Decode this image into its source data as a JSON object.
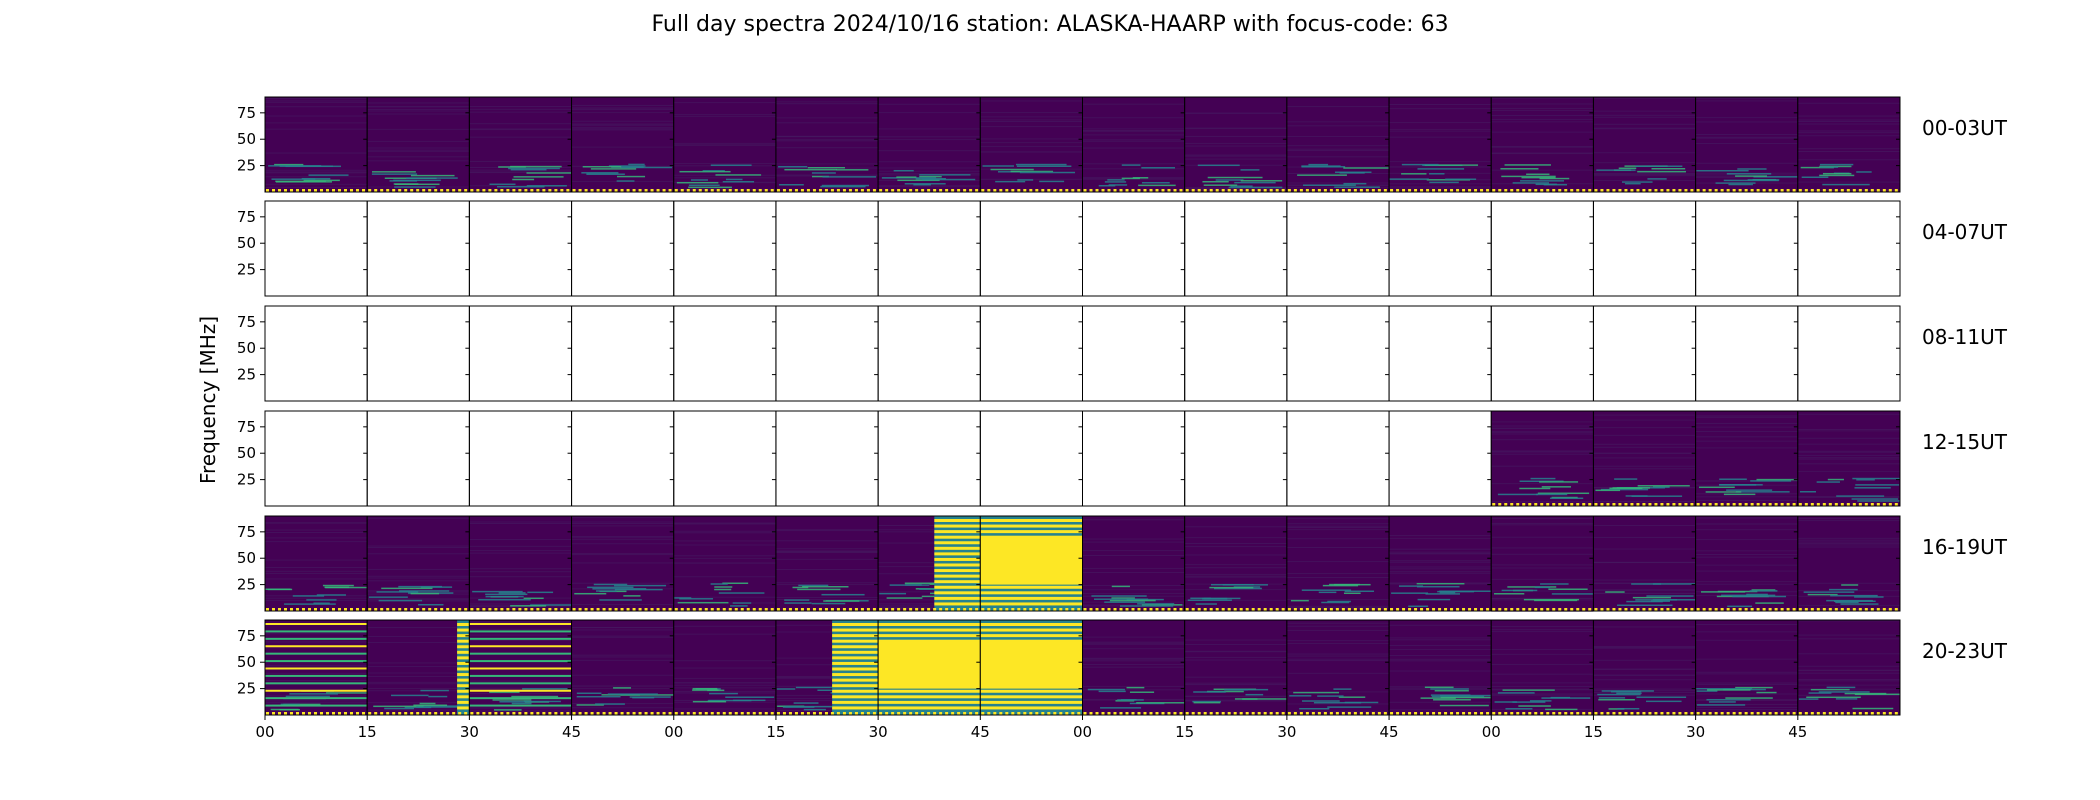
{
  "title": "Full day spectra 2024/10/16 station: ALASKA-HAARP with focus-code: 63",
  "chart_data": {
    "type": "heatmap",
    "title": "Full day spectra 2024/10/16 station: ALASKA-HAARP with focus-code: 63",
    "ylabel": "Frequency [MHz]",
    "xlabel": "",
    "yticks": [
      25,
      50,
      75
    ],
    "ylim": [
      0,
      90
    ],
    "xticks": [
      "00",
      "15",
      "30",
      "45",
      "00",
      "15",
      "30",
      "45",
      "00",
      "15",
      "30",
      "45",
      "00",
      "15",
      "30",
      "45"
    ],
    "colormap": "viridis",
    "panels_per_row": 16,
    "panel_minutes": 15,
    "rows": [
      {
        "label": "00-03UT",
        "panels": [
          "data",
          "data",
          "data",
          "data",
          "data",
          "data",
          "data",
          "data",
          "data",
          "data",
          "data",
          "data",
          "data",
          "data",
          "data",
          "data"
        ]
      },
      {
        "label": "04-07UT",
        "panels": [
          "empty",
          "empty",
          "empty",
          "empty",
          "empty",
          "empty",
          "empty",
          "empty",
          "empty",
          "empty",
          "empty",
          "empty",
          "empty",
          "empty",
          "empty",
          "empty"
        ]
      },
      {
        "label": "08-11UT",
        "panels": [
          "empty",
          "empty",
          "empty",
          "empty",
          "empty",
          "empty",
          "empty",
          "empty",
          "empty",
          "empty",
          "empty",
          "empty",
          "empty",
          "empty",
          "empty",
          "empty"
        ]
      },
      {
        "label": "12-15UT",
        "panels": [
          "empty",
          "empty",
          "empty",
          "empty",
          "empty",
          "empty",
          "empty",
          "empty",
          "empty",
          "empty",
          "empty",
          "empty",
          "data",
          "data",
          "data",
          "data"
        ]
      },
      {
        "label": "16-19UT",
        "panels": [
          "data",
          "data",
          "data",
          "data",
          "data",
          "data",
          "burst",
          "burst-strong",
          "data",
          "data",
          "data",
          "data",
          "data",
          "data",
          "data",
          "data"
        ]
      },
      {
        "label": "20-23UT",
        "panels": [
          "striped",
          "burst-partial",
          "striped",
          "data",
          "data",
          "burst",
          "burst-strong",
          "burst-strong",
          "data",
          "data",
          "data",
          "data",
          "data",
          "data",
          "data",
          "data"
        ]
      }
    ],
    "colors": {
      "background": "#440154",
      "low": "#46185f",
      "mid": "#26828e",
      "high": "#35b779",
      "max": "#fde725"
    }
  }
}
